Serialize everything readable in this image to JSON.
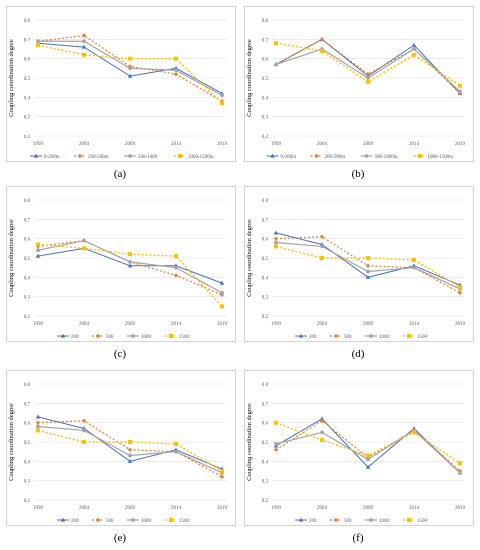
{
  "colors": {
    "series": [
      "#4472c4",
      "#ed7d31",
      "#a5a5a5",
      "#ffc000"
    ],
    "grid": "#e0e0e0",
    "frame": "#d4d4d4",
    "tick_text": "#595959"
  },
  "chart_data": [
    {
      "type": "line",
      "panel_label": "(a)",
      "ylabel": "Coupling coordination degree",
      "categories": [
        "1999",
        "2004",
        "2009",
        "2014",
        "2019"
      ],
      "ylim": [
        0.2,
        0.8
      ],
      "yticks": [
        "0.2",
        "0.3",
        "0.4",
        "0.5",
        "0.6",
        "0.7",
        "0.8"
      ],
      "grid": true,
      "legend_position": "bottom",
      "series": [
        {
          "name": "0-200m",
          "values": [
            0.68,
            0.66,
            0.51,
            0.55,
            0.42
          ]
        },
        {
          "name": "200-500m",
          "values": [
            0.69,
            0.72,
            0.56,
            0.52,
            0.38
          ]
        },
        {
          "name": "500-1000",
          "values": [
            0.69,
            0.69,
            0.55,
            0.54,
            0.41
          ]
        },
        {
          "name": "1000-1500m",
          "values": [
            0.67,
            0.62,
            0.6,
            0.6,
            0.37
          ]
        }
      ]
    },
    {
      "type": "line",
      "panel_label": "(b)",
      "ylabel": "Coupling coordination degree",
      "categories": [
        "1999",
        "2004",
        "2009",
        "2014",
        "2019"
      ],
      "ylim": [
        0.2,
        0.8
      ],
      "yticks": [
        "0.2",
        "0.3",
        "0.4",
        "0.5",
        "0.6",
        "0.7",
        "0.8"
      ],
      "grid": true,
      "legend_position": "bottom",
      "series": [
        {
          "name": "0-200m",
          "values": [
            0.57,
            0.7,
            0.51,
            0.67,
            0.42
          ]
        },
        {
          "name": "200-500m",
          "values": [
            0.57,
            0.7,
            0.52,
            0.65,
            0.42
          ]
        },
        {
          "name": "500-1000m",
          "values": [
            0.57,
            0.65,
            0.5,
            0.65,
            0.43
          ]
        },
        {
          "name": "1000-1500m",
          "values": [
            0.68,
            0.64,
            0.48,
            0.62,
            0.46
          ]
        }
      ]
    },
    {
      "type": "line",
      "panel_label": "(c)",
      "ylabel": "Coupling coordination degree",
      "categories": [
        "1999",
        "2004",
        "2009",
        "2014",
        "2019"
      ],
      "ylim": [
        0.2,
        0.8
      ],
      "yticks": [
        "0.2",
        "0.3",
        "0.4",
        "0.5",
        "0.6",
        "0.7",
        "0.8"
      ],
      "grid": true,
      "legend_position": "bottom",
      "series": [
        {
          "name": "200",
          "values": [
            0.51,
            0.55,
            0.46,
            0.46,
            0.37
          ]
        },
        {
          "name": "500",
          "values": [
            0.56,
            0.59,
            0.48,
            0.41,
            0.31
          ]
        },
        {
          "name": "1000",
          "values": [
            0.54,
            0.59,
            0.48,
            0.45,
            0.32
          ]
        },
        {
          "name": "1500",
          "values": [
            0.57,
            0.55,
            0.52,
            0.51,
            0.25
          ]
        }
      ]
    },
    {
      "type": "line",
      "panel_label": "(d)",
      "ylabel": "Coupling coordination degree",
      "categories": [
        "1999",
        "2004",
        "2009",
        "2014",
        "2019"
      ],
      "ylim": [
        0.2,
        0.8
      ],
      "yticks": [
        "0.2",
        "0.3",
        "0.4",
        "0.5",
        "0.6",
        "0.7",
        "0.8"
      ],
      "grid": true,
      "legend_position": "bottom",
      "series": [
        {
          "name": "200",
          "values": [
            0.63,
            0.57,
            0.4,
            0.46,
            0.36
          ]
        },
        {
          "name": "500",
          "values": [
            0.6,
            0.61,
            0.46,
            0.45,
            0.32
          ]
        },
        {
          "name": "1000",
          "values": [
            0.58,
            0.56,
            0.43,
            0.45,
            0.34
          ]
        },
        {
          "name": "1500",
          "values": [
            0.56,
            0.5,
            0.5,
            0.49,
            0.35
          ]
        }
      ]
    },
    {
      "type": "line",
      "panel_label": "(e)",
      "ylabel": "Coupling coordination degree",
      "categories": [
        "1999",
        "2004",
        "2009",
        "2014",
        "2019"
      ],
      "ylim": [
        0.2,
        0.8
      ],
      "yticks": [
        "0.2",
        "0.3",
        "0.4",
        "0.5",
        "0.6",
        "0.7",
        "0.8"
      ],
      "grid": true,
      "legend_position": "bottom",
      "series": [
        {
          "name": "200",
          "values": [
            0.63,
            0.57,
            0.4,
            0.46,
            0.36
          ]
        },
        {
          "name": "500",
          "values": [
            0.6,
            0.61,
            0.46,
            0.45,
            0.32
          ]
        },
        {
          "name": "1000",
          "values": [
            0.58,
            0.56,
            0.43,
            0.45,
            0.34
          ]
        },
        {
          "name": "1500",
          "values": [
            0.56,
            0.5,
            0.5,
            0.49,
            0.35
          ]
        }
      ]
    },
    {
      "type": "line",
      "panel_label": "(f)",
      "ylabel": "Coupling coordination degree",
      "categories": [
        "1999",
        "2004",
        "2009",
        "2014",
        "2019"
      ],
      "ylim": [
        0.2,
        0.8
      ],
      "yticks": [
        "0.2",
        "0.3",
        "0.4",
        "0.5",
        "0.6",
        "0.7",
        "0.8"
      ],
      "grid": true,
      "legend_position": "bottom",
      "series": [
        {
          "name": "200",
          "values": [
            0.48,
            0.62,
            0.37,
            0.57,
            0.34
          ]
        },
        {
          "name": "500",
          "values": [
            0.46,
            0.61,
            0.42,
            0.56,
            0.35
          ]
        },
        {
          "name": "1000",
          "values": [
            0.49,
            0.55,
            0.41,
            0.56,
            0.34
          ]
        },
        {
          "name": "1500",
          "values": [
            0.6,
            0.51,
            0.43,
            0.55,
            0.39
          ]
        }
      ]
    }
  ]
}
